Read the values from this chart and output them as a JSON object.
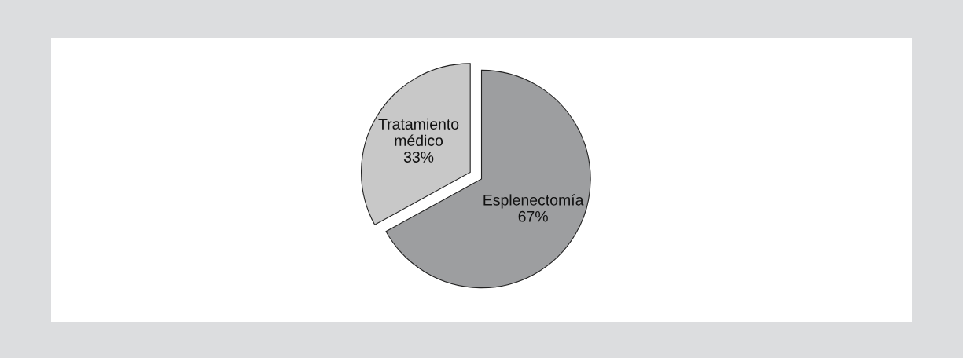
{
  "chart_data": {
    "type": "pie",
    "categories": [
      "Tratamiento médico",
      "Esplenectomía"
    ],
    "values": [
      33,
      67
    ],
    "value_labels": [
      "33%",
      "67%"
    ],
    "colors": [
      "#c8c8c8",
      "#9d9ea0"
    ]
  }
}
